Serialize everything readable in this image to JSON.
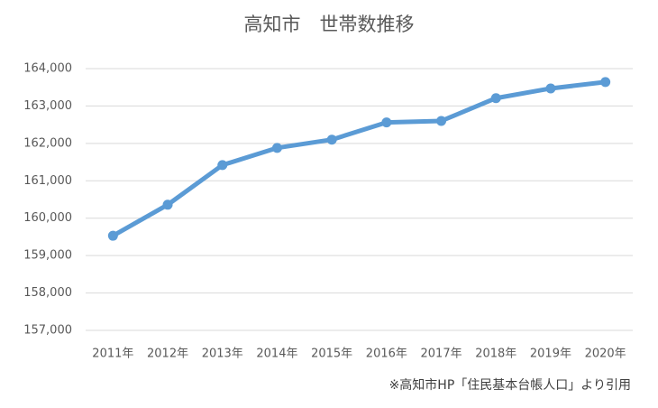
{
  "chart_data": {
    "type": "line",
    "title": "高知市　世帯数推移",
    "note": "※高知市HP「住民基本台帳人口」より引用",
    "categories": [
      "2011年",
      "2012年",
      "2013年",
      "2014年",
      "2015年",
      "2016年",
      "2017年",
      "2018年",
      "2019年",
      "2020年"
    ],
    "series": [
      {
        "color": "#5b9bd5",
        "values": [
          159530,
          160360,
          161420,
          161880,
          162100,
          162560,
          162600,
          163210,
          163470,
          163640
        ]
      }
    ],
    "ylim": [
      157000,
      164000
    ],
    "yticks": [
      {
        "value": 157000,
        "label": "157,000"
      },
      {
        "value": 158000,
        "label": "158,000"
      },
      {
        "value": 159000,
        "label": "159,000"
      },
      {
        "value": 160000,
        "label": "160,000"
      },
      {
        "value": 161000,
        "label": "161,000"
      },
      {
        "value": 162000,
        "label": "162,000"
      },
      {
        "value": 163000,
        "label": "163,000"
      },
      {
        "value": 164000,
        "label": "164,000"
      }
    ],
    "grid": true
  }
}
